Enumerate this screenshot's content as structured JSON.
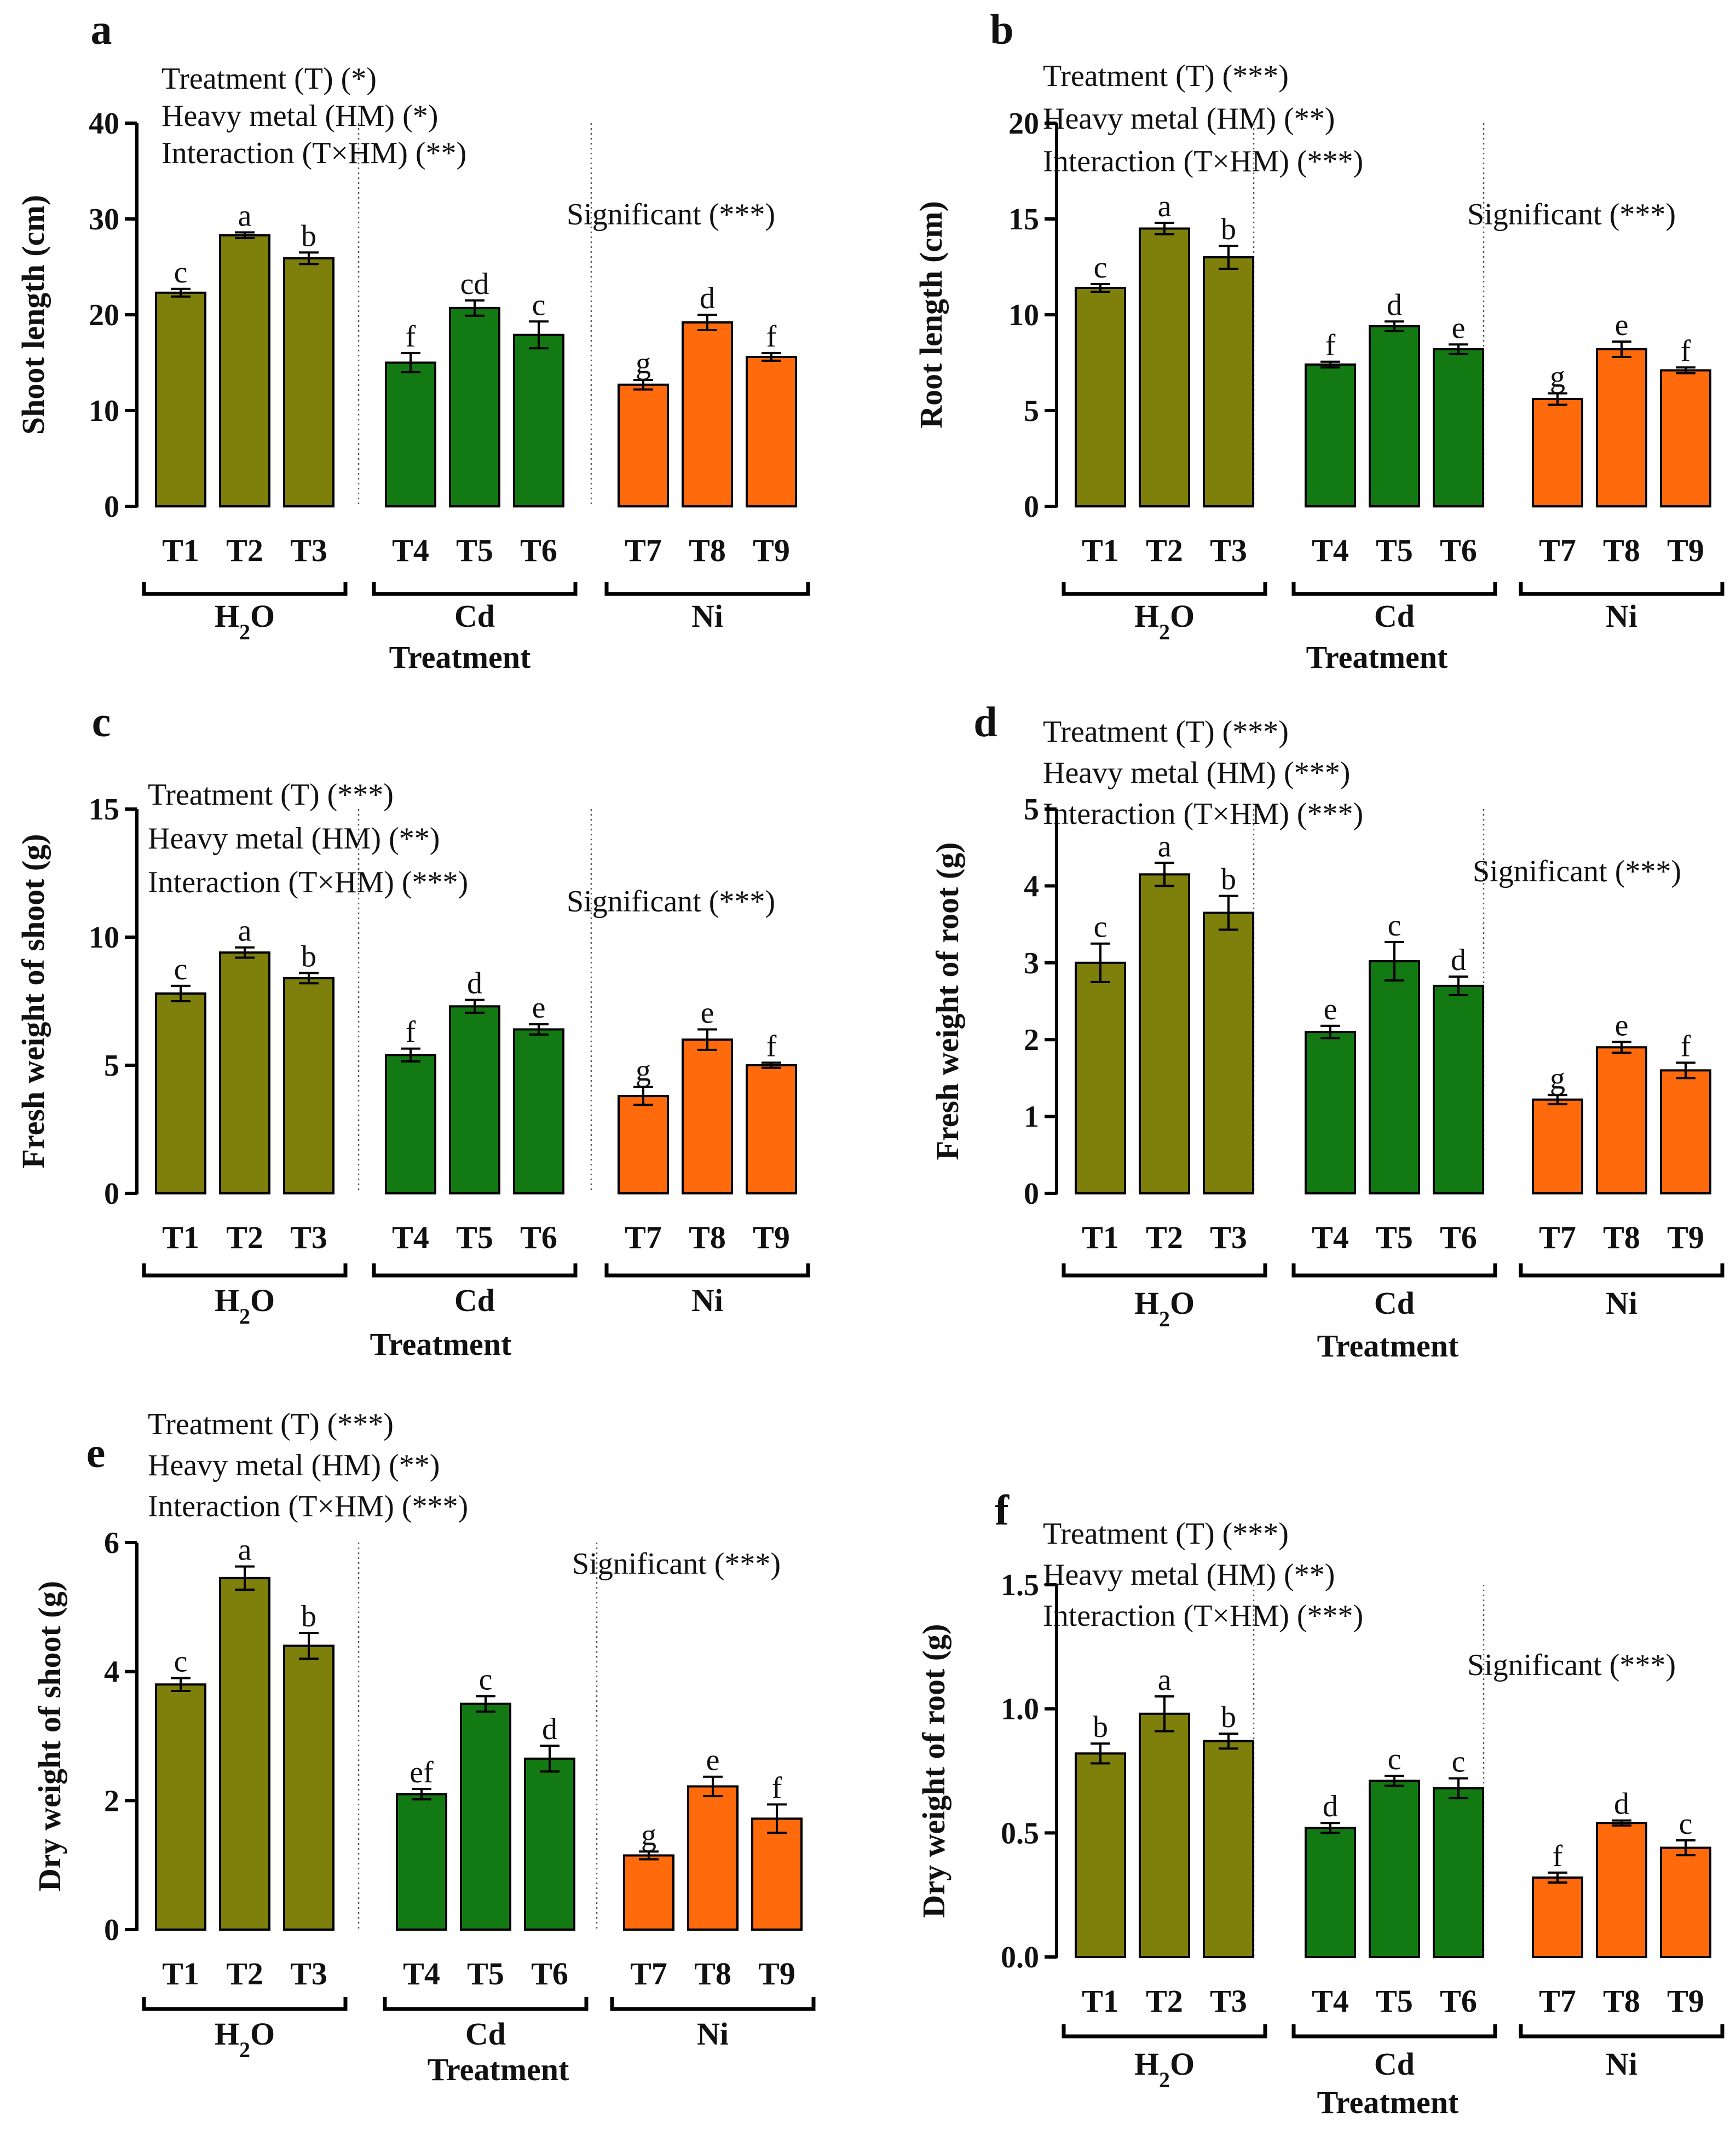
{
  "colors": {
    "H2O": "#7f7f0c",
    "Cd": "#137a13",
    "Ni": "#ff6a0d"
  },
  "significant_label": "Significant (***)",
  "x_title": "Treatment",
  "groups": [
    {
      "label": "H2O",
      "display": "H",
      "sub": "2",
      "tail": "O"
    },
    {
      "label": "Cd",
      "display": "Cd",
      "sub": "",
      "tail": ""
    },
    {
      "label": "Ni",
      "display": "Ni",
      "sub": "",
      "tail": ""
    }
  ],
  "chart_data": [
    {
      "type": "bar",
      "panel": "a",
      "ylabel": "Shoot length (cm)",
      "xlabel": "Treatment",
      "ylim": [
        0,
        40
      ],
      "yticks": [
        0,
        10,
        20,
        30,
        40
      ],
      "ytick_labels": [
        "0",
        "10",
        "20",
        "30",
        "40"
      ],
      "stats": [
        "Treatment (T) (*)",
        "Heavy metal (HM) (*)",
        "Interaction (T×HM) (**)"
      ],
      "significance": "Significant (***)",
      "categories": [
        "T1",
        "T2",
        "T3",
        "T4",
        "T5",
        "T6",
        "T7",
        "T8",
        "T9"
      ],
      "values": [
        22.3,
        28.3,
        25.9,
        15.0,
        20.7,
        17.9,
        12.7,
        19.2,
        15.6
      ],
      "errors": [
        0.4,
        0.3,
        0.6,
        1.0,
        0.8,
        1.4,
        0.5,
        0.8,
        0.4
      ],
      "letters": [
        "c",
        "a",
        "b",
        "f",
        "cd",
        "c",
        "g",
        "d",
        "f"
      ]
    },
    {
      "type": "bar",
      "panel": "b",
      "ylabel": "Root length (cm)",
      "xlabel": "Treatment",
      "ylim": [
        0,
        20
      ],
      "yticks": [
        0,
        5,
        10,
        15,
        20
      ],
      "ytick_labels": [
        "0",
        "5",
        "10",
        "15",
        "20"
      ],
      "stats": [
        "Treatment (T) (***)",
        "Heavy metal (HM) (**)",
        "Interaction (T×HM) (***)"
      ],
      "significance": "Significant (***)",
      "categories": [
        "T1",
        "T2",
        "T3",
        "T4",
        "T5",
        "T6",
        "T7",
        "T8",
        "T9"
      ],
      "values": [
        11.4,
        14.5,
        13.0,
        7.4,
        9.4,
        8.2,
        5.6,
        8.2,
        7.1
      ],
      "errors": [
        0.2,
        0.3,
        0.6,
        0.15,
        0.25,
        0.25,
        0.3,
        0.4,
        0.15
      ],
      "letters": [
        "c",
        "a",
        "b",
        "f",
        "d",
        "e",
        "g",
        "e",
        "f"
      ]
    },
    {
      "type": "bar",
      "panel": "c",
      "ylabel": "Fresh weight of shoot (g)",
      "xlabel": "Treatment",
      "ylim": [
        0,
        15
      ],
      "yticks": [
        0,
        5,
        10,
        15
      ],
      "ytick_labels": [
        "0",
        "5",
        "10",
        "15"
      ],
      "stats": [
        "Treatment (T) (***)",
        "Heavy metal (HM) (**)",
        "Interaction (T×HM) (***)"
      ],
      "significance": "Significant (***)",
      "categories": [
        "T1",
        "T2",
        "T3",
        "T4",
        "T5",
        "T6",
        "T7",
        "T8",
        "T9"
      ],
      "values": [
        7.8,
        9.4,
        8.4,
        5.4,
        7.3,
        6.4,
        3.8,
        6.0,
        5.0
      ],
      "errors": [
        0.3,
        0.2,
        0.2,
        0.25,
        0.25,
        0.2,
        0.35,
        0.4,
        0.1
      ],
      "letters": [
        "c",
        "a",
        "b",
        "f",
        "d",
        "e",
        "g",
        "e",
        "f"
      ]
    },
    {
      "type": "bar",
      "panel": "d",
      "ylabel": "Fresh weight of root (g)",
      "xlabel": "Treatment",
      "ylim": [
        0,
        5
      ],
      "yticks": [
        0,
        1,
        2,
        3,
        4,
        5
      ],
      "ytick_labels": [
        "0",
        "1",
        "2",
        "3",
        "4",
        "5"
      ],
      "stats": [
        "Treatment (T) (***)",
        "Heavy metal (HM) (***)",
        "Interaction (T×HM) (***)"
      ],
      "significance": "Significant (***)",
      "categories": [
        "T1",
        "T2",
        "T3",
        "T4",
        "T5",
        "T6",
        "T7",
        "T8",
        "T9"
      ],
      "values": [
        3.0,
        4.15,
        3.65,
        2.1,
        3.02,
        2.7,
        1.22,
        1.9,
        1.6
      ],
      "errors": [
        0.25,
        0.15,
        0.22,
        0.08,
        0.25,
        0.12,
        0.06,
        0.07,
        0.1
      ],
      "letters": [
        "c",
        "a",
        "b",
        "e",
        "c",
        "d",
        "g",
        "e",
        "f"
      ]
    },
    {
      "type": "bar",
      "panel": "e",
      "ylabel": "Dry weight of shoot (g)",
      "xlabel": "Treatment",
      "ylim": [
        0,
        6
      ],
      "yticks": [
        0,
        2,
        4,
        6
      ],
      "ytick_labels": [
        "0",
        "2",
        "4",
        "6"
      ],
      "stats": [
        "Treatment (T) (***)",
        "Heavy metal (HM) (**)",
        "Interaction (T×HM) (***)"
      ],
      "significance": "Significant (***)",
      "categories": [
        "T1",
        "T2",
        "T3",
        "T4",
        "T5",
        "T6",
        "T7",
        "T8",
        "T9"
      ],
      "values": [
        3.8,
        5.45,
        4.4,
        2.1,
        3.5,
        2.65,
        1.15,
        2.22,
        1.72
      ],
      "errors": [
        0.1,
        0.18,
        0.2,
        0.08,
        0.12,
        0.2,
        0.06,
        0.15,
        0.22
      ],
      "letters": [
        "c",
        "a",
        "b",
        "ef",
        "c",
        "d",
        "g",
        "e",
        "f"
      ]
    },
    {
      "type": "bar",
      "panel": "f",
      "ylabel": "Dry weight of root (g)",
      "xlabel": "Treatment",
      "ylim": [
        0,
        1.5
      ],
      "yticks": [
        0,
        0.5,
        1.0,
        1.5
      ],
      "ytick_labels": [
        "0.0",
        "0.5",
        "1.0",
        "1.5"
      ],
      "stats": [
        "Treatment (T) (***)",
        "Heavy metal (HM) (**)",
        "Interaction (T×HM) (***)"
      ],
      "significance": "Significant (***)",
      "categories": [
        "T1",
        "T2",
        "T3",
        "T4",
        "T5",
        "T6",
        "T7",
        "T8",
        "T9"
      ],
      "values": [
        0.82,
        0.98,
        0.87,
        0.52,
        0.71,
        0.68,
        0.32,
        0.54,
        0.44
      ],
      "errors": [
        0.04,
        0.07,
        0.03,
        0.02,
        0.02,
        0.04,
        0.02,
        0.01,
        0.03
      ],
      "letters": [
        "b",
        "a",
        "b",
        "d",
        "c",
        "c",
        "f",
        "d",
        "c"
      ]
    }
  ]
}
